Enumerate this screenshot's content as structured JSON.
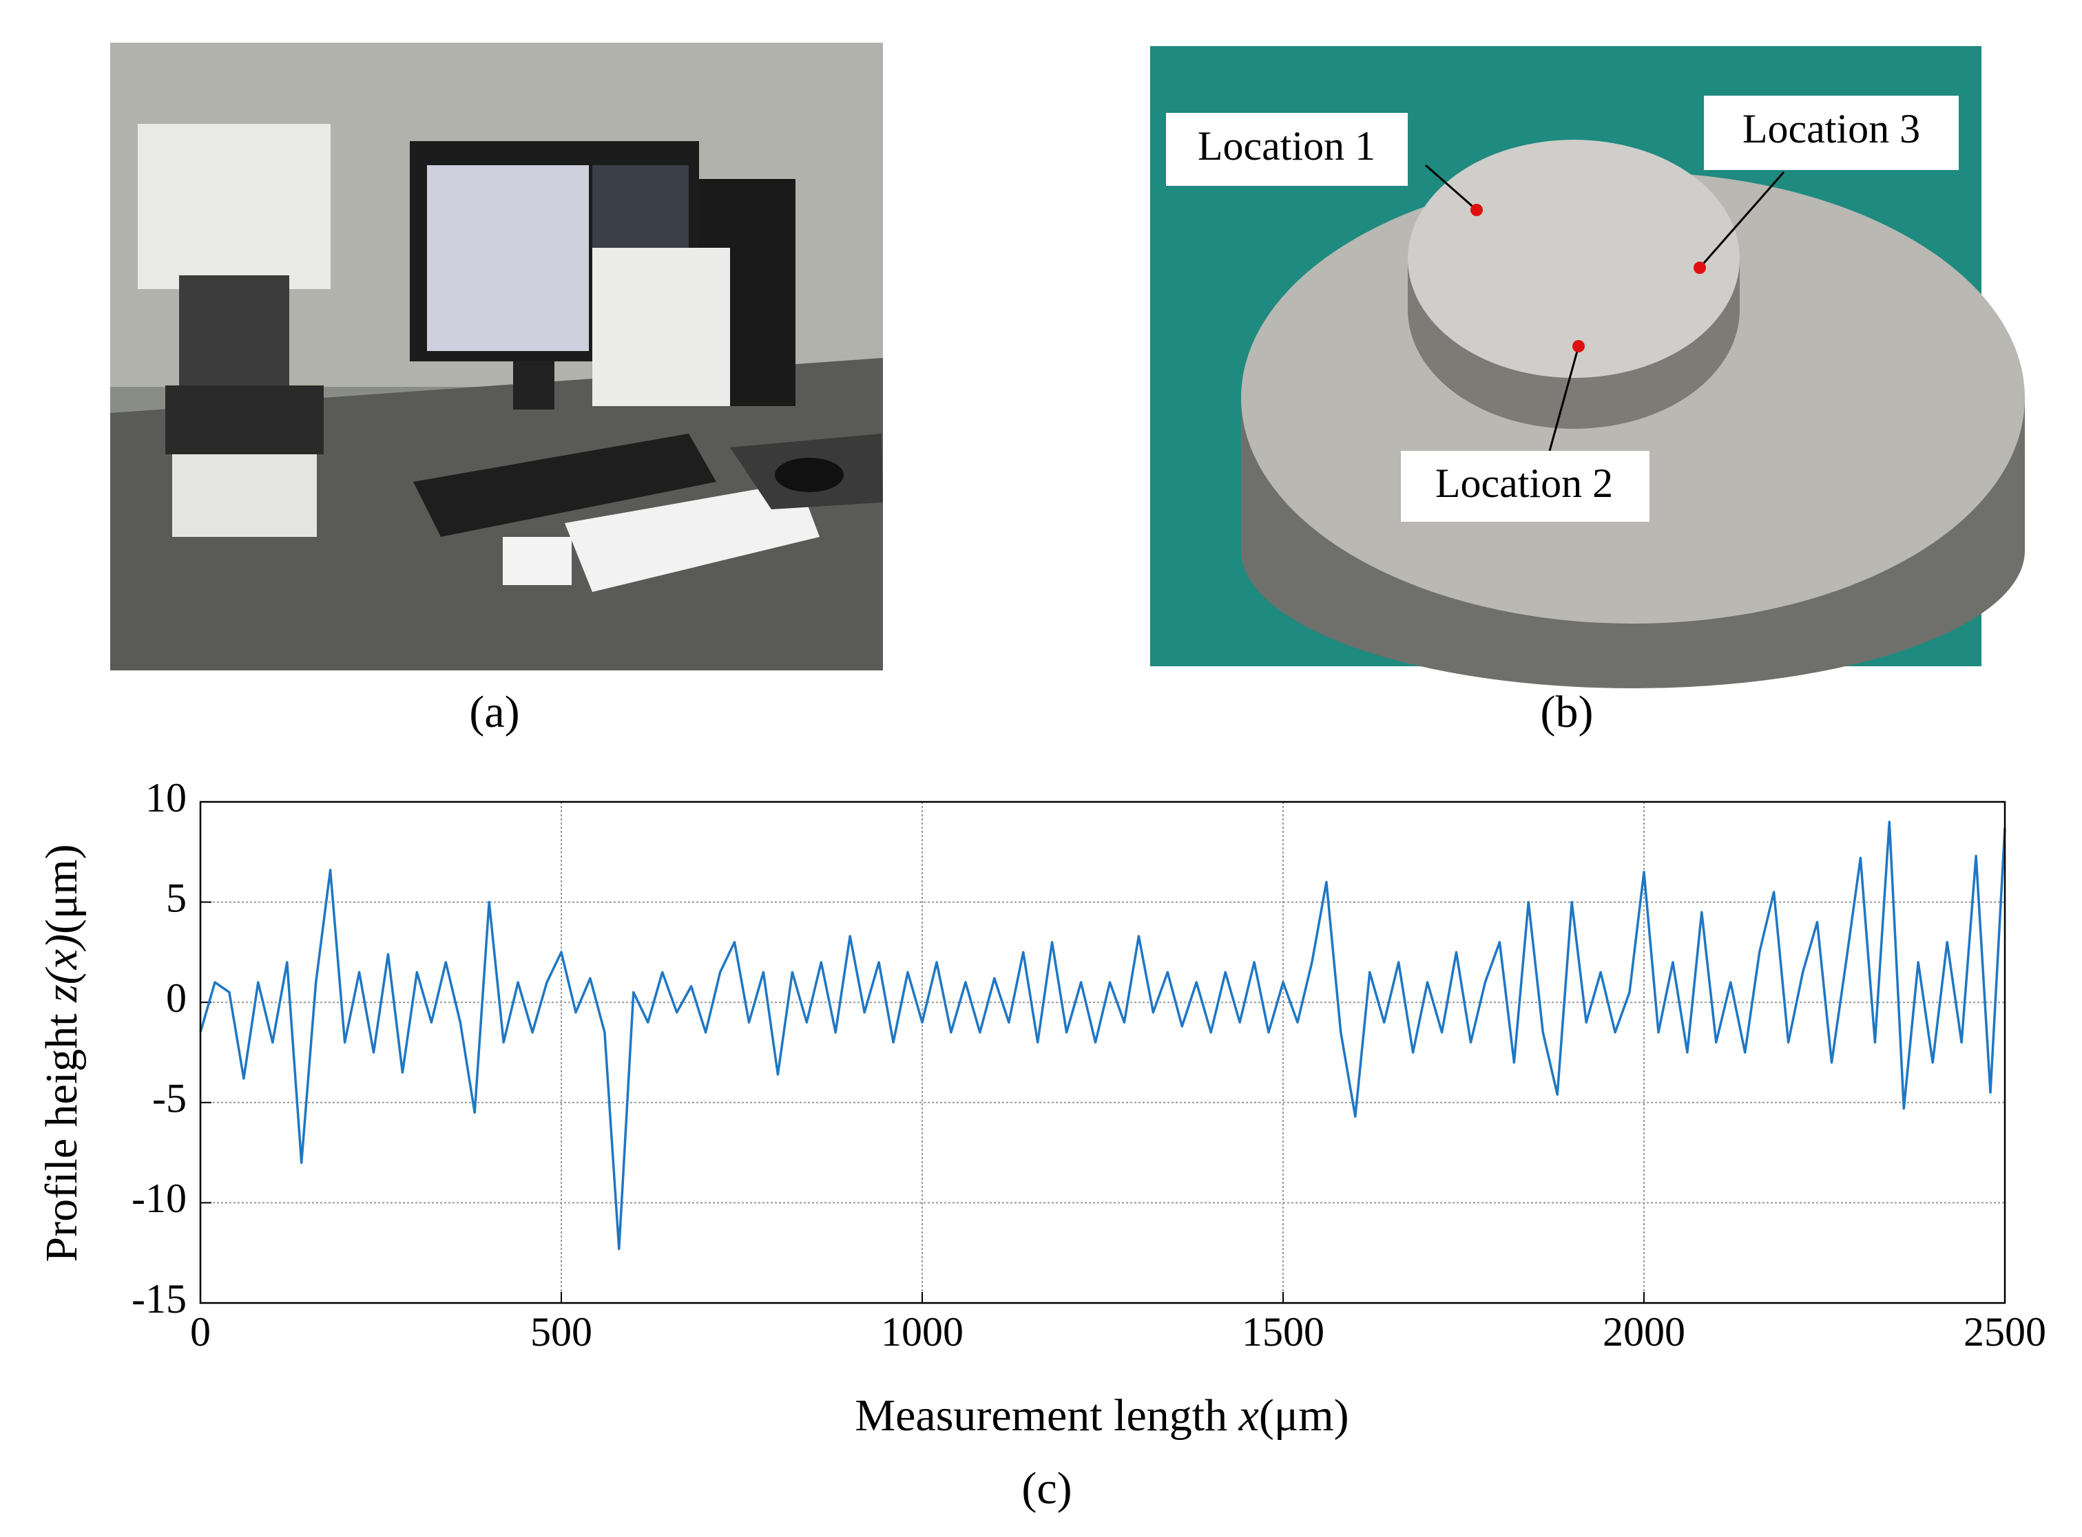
{
  "panels": {
    "a": "(a)",
    "b": "(b)",
    "c": "(c)"
  },
  "locations": [
    "Location 1",
    "Location 2",
    "Location 3"
  ],
  "chart_data": {
    "type": "line",
    "x_label": [
      "Measurement length ",
      "x",
      "(μm)"
    ],
    "y_label": [
      "Profile height ",
      "z(x)",
      "(μm)"
    ],
    "color": "#1f77c4",
    "xlim": [
      0,
      2500
    ],
    "xticks": [
      0,
      500,
      1000,
      1500,
      2000,
      2500
    ],
    "ylim": [
      -15,
      10
    ],
    "yticks": [
      10,
      5,
      0,
      -5,
      -10,
      -15
    ],
    "grid": true,
    "x": [
      0,
      20,
      40,
      60,
      80,
      100,
      120,
      140,
      160,
      180,
      200,
      220,
      240,
      260,
      280,
      300,
      320,
      340,
      360,
      380,
      400,
      420,
      440,
      460,
      480,
      500,
      520,
      540,
      560,
      580,
      600,
      620,
      640,
      660,
      680,
      700,
      720,
      740,
      760,
      780,
      800,
      820,
      840,
      860,
      880,
      900,
      920,
      940,
      960,
      980,
      1000,
      1020,
      1040,
      1060,
      1080,
      1100,
      1120,
      1140,
      1160,
      1180,
      1200,
      1220,
      1240,
      1260,
      1280,
      1300,
      1320,
      1340,
      1360,
      1380,
      1400,
      1420,
      1440,
      1460,
      1480,
      1500,
      1520,
      1540,
      1560,
      1580,
      1600,
      1620,
      1640,
      1660,
      1680,
      1700,
      1720,
      1740,
      1760,
      1780,
      1800,
      1820,
      1840,
      1860,
      1880,
      1900,
      1920,
      1940,
      1960,
      1980,
      2000,
      2020,
      2040,
      2060,
      2080,
      2100,
      2120,
      2140,
      2160,
      2180,
      2200,
      2220,
      2240,
      2260,
      2280,
      2300,
      2320,
      2340,
      2360,
      2380,
      2400,
      2420,
      2440,
      2460,
      2480,
      2500
    ],
    "values": [
      -1.5,
      1,
      0.5,
      -3.8,
      1,
      -2,
      2,
      -8,
      1,
      6.6,
      -2,
      1.5,
      -2.5,
      2.4,
      -3.5,
      1.5,
      -1,
      2,
      -1,
      -5.5,
      5,
      -2,
      1,
      -1.5,
      1,
      2.5,
      -0.5,
      1.2,
      -1.5,
      -12.3,
      0.5,
      -1,
      1.5,
      -0.5,
      0.8,
      -1.5,
      1.5,
      3,
      -1,
      1.5,
      -3.6,
      1.5,
      -1,
      2,
      -1.5,
      3.3,
      -0.5,
      2,
      -2,
      1.5,
      -1,
      2,
      -1.5,
      1,
      -1.5,
      1.2,
      -1,
      2.5,
      -2,
      3,
      -1.5,
      1,
      -2,
      1,
      -1,
      3.3,
      -0.5,
      1.5,
      -1.2,
      1,
      -1.5,
      1.5,
      -1,
      2,
      -1.5,
      1,
      -1,
      2,
      6,
      -1.5,
      -5.7,
      1.5,
      -1,
      2,
      -2.5,
      1,
      -1.5,
      2.5,
      -2,
      1,
      3,
      -3,
      5,
      -1.5,
      -4.6,
      5,
      -1,
      1.5,
      -1.5,
      0.5,
      6.5,
      -1.5,
      2,
      -2.5,
      4.5,
      -2,
      1,
      -2.5,
      2.5,
      5.5,
      -2,
      1.5,
      4,
      -3,
      2,
      7.2,
      -2,
      9,
      -5.3,
      2,
      -3,
      3,
      -2,
      7.3,
      -4.5,
      8.7
    ]
  }
}
